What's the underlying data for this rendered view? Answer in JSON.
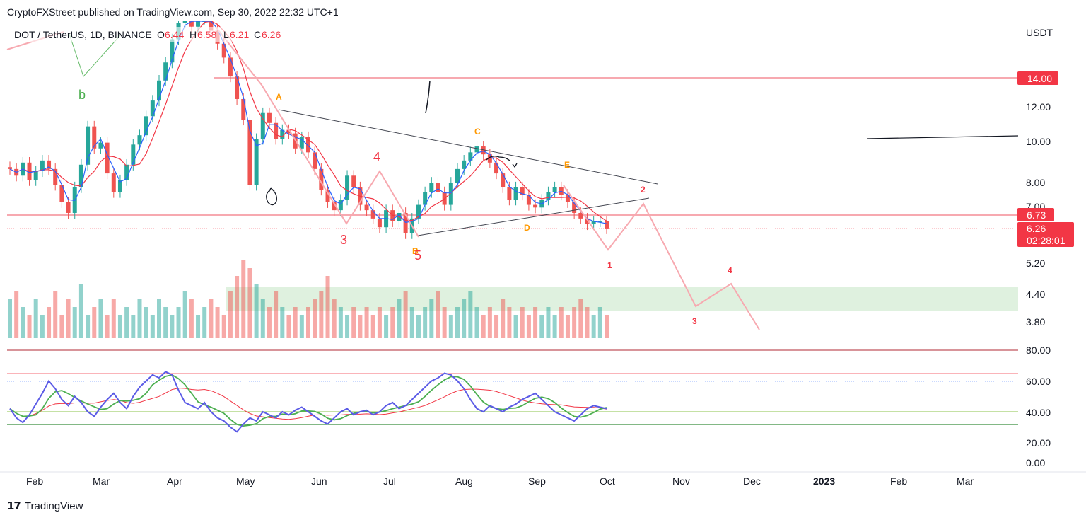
{
  "header": {
    "publisher": "CryptoFXStreet published on TradingView.com, Sep 30, 2022 22:32 UTC+1"
  },
  "footer": {
    "brand": "TradingView",
    "logo_glyph": "17"
  },
  "chart_data": {
    "type": "candlestick",
    "symbol": "DOT / TetherUS, 1D, BINANCE",
    "ohlc": {
      "o_label": "O",
      "o": "6.44",
      "h_label": "H",
      "h": "6.58",
      "l_label": "L",
      "l": "6.21",
      "c_label": "C",
      "c": "6.26"
    },
    "currency": "USDT",
    "price_axis": [
      "14.00",
      "12.00",
      "10.00",
      "8.00",
      "7.00",
      "5.20",
      "4.40",
      "3.80"
    ],
    "price_tags": {
      "level": "6.73",
      "last": "6.26",
      "countdown": "02:28:01"
    },
    "rsi_axis": [
      "80.00",
      "60.00",
      "40.00",
      "20.00",
      "0.00"
    ],
    "time_axis": [
      "Feb",
      "Mar",
      "Apr",
      "May",
      "Jun",
      "Jul",
      "Aug",
      "Sep",
      "Oct",
      "Nov",
      "Dec",
      "2023",
      "Feb",
      "Mar"
    ],
    "wave_labels": [
      {
        "text": "b",
        "color": "#4caf50"
      },
      {
        "text": "A",
        "color": "#ff9800"
      },
      {
        "text": "3",
        "color": "#f23645"
      },
      {
        "text": "4",
        "color": "#f23645"
      },
      {
        "text": "B",
        "color": "#ff9800"
      },
      {
        "text": "5",
        "color": "#f23645"
      },
      {
        "text": "C",
        "color": "#ff9800"
      },
      {
        "text": "E",
        "color": "#ff9800"
      },
      {
        "text": "D",
        "color": "#ff9800"
      },
      {
        "text": "2",
        "color": "#f23645"
      },
      {
        "text": "1",
        "color": "#f23645"
      },
      {
        "text": "4",
        "color": "#f23645"
      },
      {
        "text": "3",
        "color": "#f23645"
      }
    ],
    "close_path": [
      8.6,
      8.3,
      8.9,
      8.1,
      8.5,
      9.0,
      8.6,
      7.9,
      7.2,
      6.8,
      7.8,
      8.8,
      10.8,
      9.6,
      9.9,
      8.4,
      7.6,
      8.1,
      8.8,
      9.8,
      10.3,
      11.4,
      12.4,
      13.8,
      15.2,
      17.2,
      18.8,
      19.6,
      18.4,
      19.2,
      19.8,
      18.0,
      16.8,
      15.6,
      14.1,
      12.5,
      11.2,
      7.9,
      10.1,
      11.6,
      11.0,
      10.1,
      10.6,
      10.4,
      9.6,
      10.2,
      9.4,
      8.6,
      7.7,
      7.2,
      6.9,
      7.3,
      8.3,
      7.8,
      7.1,
      6.9,
      6.6,
      6.3,
      6.9,
      6.5,
      6.8,
      6.1,
      6.6,
      7.1,
      7.6,
      8.0,
      7.6,
      7.1,
      8.0,
      8.6,
      9.0,
      9.4,
      9.7,
      9.3,
      8.9,
      8.4,
      7.8,
      7.3,
      7.8,
      7.5,
      7.1,
      7.0,
      7.3,
      7.6,
      7.8,
      7.5,
      7.2,
      6.8,
      6.6,
      6.4,
      6.5,
      6.5,
      6.26
    ],
    "volume_path": [
      0.5,
      0.6,
      0.4,
      0.3,
      0.5,
      0.3,
      0.4,
      0.6,
      0.3,
      0.5,
      0.4,
      0.7,
      0.3,
      0.4,
      0.5,
      0.3,
      0.5,
      0.3,
      0.4,
      0.3,
      0.5,
      0.4,
      0.3,
      0.5,
      0.4,
      0.3,
      0.4,
      0.6,
      0.5,
      0.3,
      0.4,
      0.5,
      0.4,
      0.3,
      0.6,
      0.8,
      1.0,
      0.9,
      0.7,
      0.5,
      0.4,
      0.6,
      0.4,
      0.3,
      0.4,
      0.3,
      0.4,
      0.5,
      0.6,
      0.8,
      0.5,
      0.4,
      0.3,
      0.4,
      0.3,
      0.4,
      0.3,
      0.4,
      0.3,
      0.4,
      0.5,
      0.6,
      0.4,
      0.3,
      0.4,
      0.5,
      0.6,
      0.4,
      0.3,
      0.4,
      0.5,
      0.6,
      0.4,
      0.3,
      0.4,
      0.3,
      0.5,
      0.4,
      0.3,
      0.4,
      0.3,
      0.4,
      0.3,
      0.4,
      0.3,
      0.4,
      0.3,
      0.4,
      0.5,
      0.4,
      0.3,
      0.4,
      0.3
    ],
    "rsi_path": [
      42,
      36,
      33,
      38,
      45,
      52,
      60,
      55,
      48,
      44,
      50,
      46,
      40,
      37,
      43,
      48,
      52,
      46,
      42,
      50,
      56,
      60,
      64,
      62,
      66,
      64,
      54,
      46,
      44,
      42,
      46,
      40,
      36,
      34,
      30,
      27,
      32,
      36,
      34,
      40,
      38,
      36,
      40,
      38,
      41,
      43,
      40,
      37,
      34,
      32,
      36,
      40,
      42,
      38,
      40,
      41,
      38,
      40,
      44,
      46,
      42,
      44,
      48,
      52,
      56,
      60,
      62,
      65,
      64,
      60,
      55,
      48,
      42,
      40,
      44,
      42,
      40,
      43,
      45,
      48,
      50,
      52,
      48,
      44,
      40,
      38,
      36,
      34,
      38,
      42,
      44,
      43,
      42
    ]
  }
}
